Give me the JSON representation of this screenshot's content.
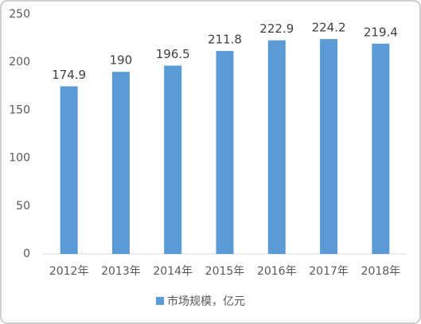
{
  "chart_data": {
    "type": "bar",
    "categories": [
      "2012年",
      "2013年",
      "2014年",
      "2015年",
      "2016年",
      "2017年",
      "2018年"
    ],
    "series": [
      {
        "name": "市场规模，亿元",
        "color": "#5b9bd5",
        "values": [
          174.9,
          190,
          196.5,
          211.8,
          222.9,
          224.2,
          219.4
        ]
      }
    ],
    "ylim": [
      0,
      250
    ],
    "yticks": [
      0,
      50,
      100,
      150,
      200,
      250
    ],
    "grid": false,
    "legend": "bottom"
  }
}
